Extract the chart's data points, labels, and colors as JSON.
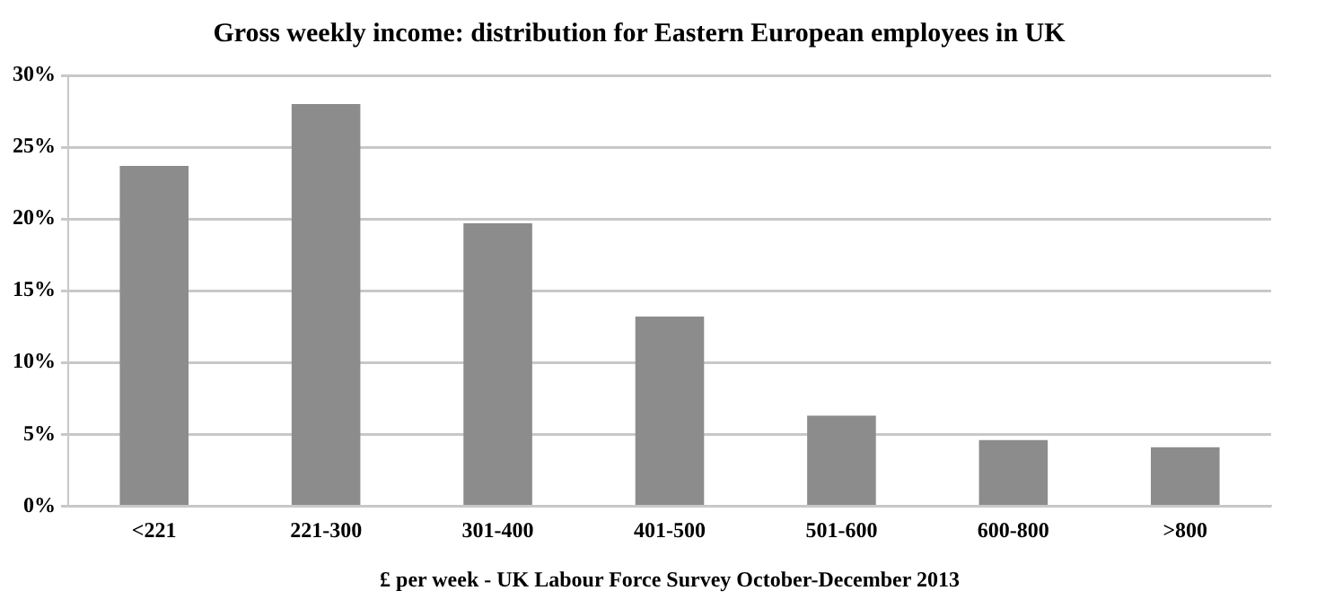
{
  "chart_data": {
    "type": "bar",
    "title": "Gross weekly income: distribution for Eastern European employees in UK",
    "xlabel": "£ per week - UK Labour Force Survey October-December 2013",
    "categories": [
      "<221",
      "221-300",
      "301-400",
      "401-500",
      "501-600",
      "600-800",
      ">800"
    ],
    "values": [
      23.7,
      28.0,
      19.7,
      13.2,
      6.3,
      4.6,
      4.1
    ],
    "color": "#8c8c8c",
    "ylim": [
      0,
      30
    ],
    "yticks": [
      {
        "value": 0,
        "label": "0%"
      },
      {
        "value": 5,
        "label": "5%"
      },
      {
        "value": 10,
        "label": "10%"
      },
      {
        "value": 15,
        "label": "15%"
      },
      {
        "value": 20,
        "label": "20%"
      },
      {
        "value": 25,
        "label": "25%"
      },
      {
        "value": 30,
        "label": "30%"
      }
    ],
    "grid": "y",
    "legend": false
  }
}
